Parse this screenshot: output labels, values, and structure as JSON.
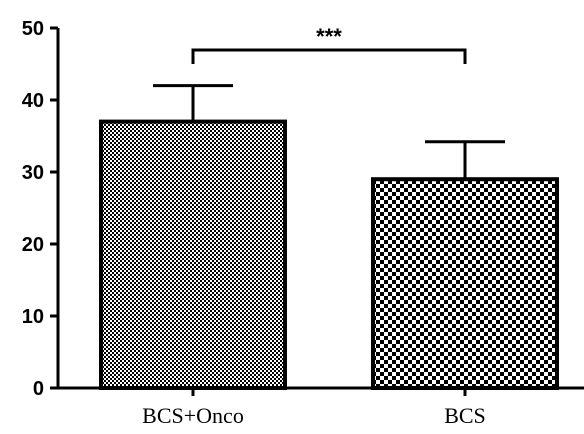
{
  "chart_data": {
    "type": "bar",
    "categories": [
      "BCS+Onco",
      "BCS"
    ],
    "values": [
      37,
      29
    ],
    "errors": [
      5,
      5.2
    ],
    "patterns": [
      "fine-checker",
      "coarse-checker"
    ],
    "ylim": [
      0,
      50
    ],
    "yticks": [
      0,
      10,
      20,
      30,
      40,
      50
    ],
    "significance": {
      "between": [
        0,
        1
      ],
      "label": "***"
    },
    "bar_color": "#000000",
    "background": "#ffffff"
  }
}
